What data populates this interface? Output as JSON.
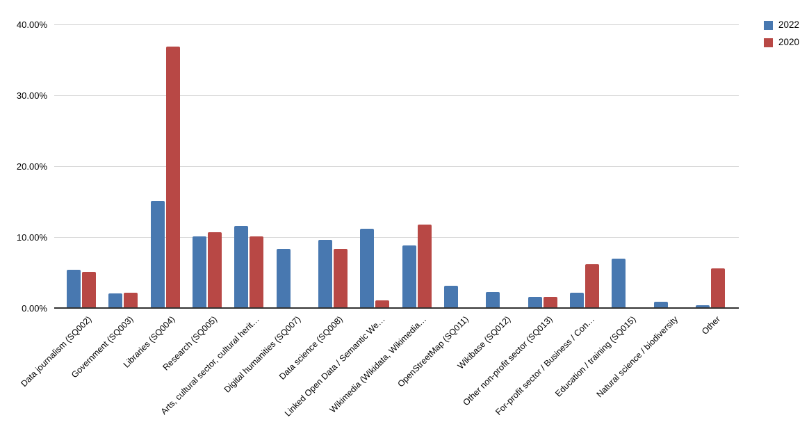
{
  "chart_data": {
    "type": "bar",
    "title": "",
    "xlabel": "",
    "ylabel": "",
    "ylim": [
      0,
      40
    ],
    "grid": true,
    "legend_position": "top-right",
    "y_ticks": [
      "0.00%",
      "10.00%",
      "20.00%",
      "30.00%",
      "40.00%"
    ],
    "categories": [
      "Data journalism (SQ002)",
      "Government (SQ003)",
      "Libraries (SQ004)",
      "Research (SQ005)",
      "Arts, cultural sector, cultural herit…",
      "Digital humanities (SQ007)",
      "Data science (SQ008)",
      "Linked Open Data / Semantic We…",
      "Wikimedia (Wikidata, Wikimedia…",
      "OpenStreetMap (SQ011)",
      "Wikibase (SQ012)",
      "Other non-profit sector (SQ013)",
      "For-profit sector / Business / Con…",
      "Education / training (SQ015)",
      "Natural science / biodiversity",
      "Other"
    ],
    "series": [
      {
        "name": "2022",
        "color": "#4878b0",
        "values": [
          5.4,
          2.1,
          15.1,
          10.1,
          11.6,
          8.3,
          9.6,
          11.2,
          8.8,
          3.1,
          2.3,
          1.6,
          2.2,
          7.0,
          0.9,
          0.4
        ]
      },
      {
        "name": "2020",
        "color": "#b84845",
        "values": [
          5.1,
          2.2,
          36.9,
          10.7,
          10.1,
          0,
          8.3,
          1.1,
          11.8,
          0,
          0,
          1.6,
          6.2,
          0,
          0,
          5.6
        ]
      }
    ],
    "colors": {
      "gridline": "#d9d9d9",
      "baseline": "#333333",
      "text": "#000000",
      "background": "#ffffff"
    }
  }
}
